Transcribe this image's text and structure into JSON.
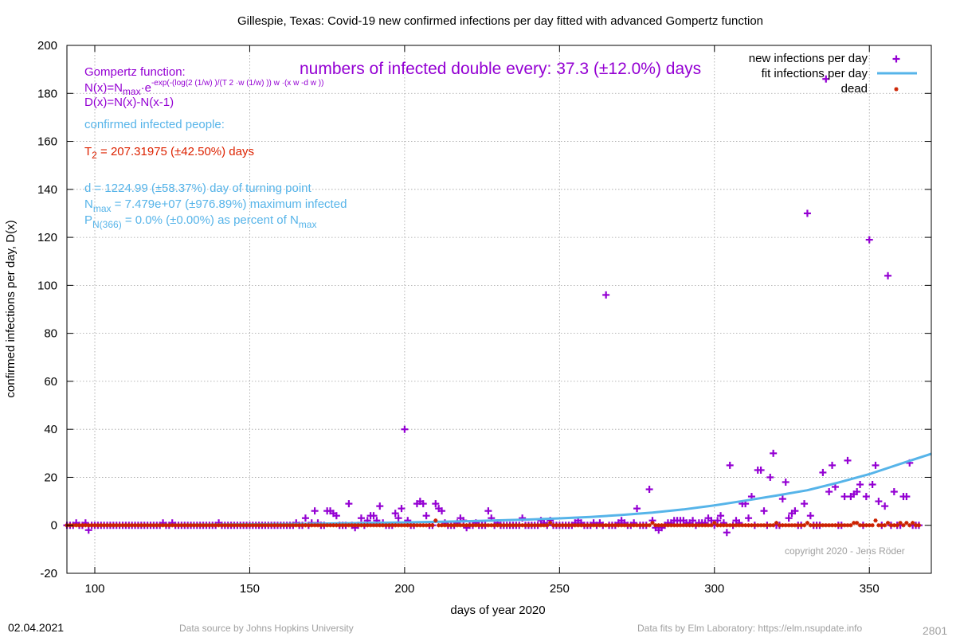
{
  "chart_data": {
    "type": "scatter",
    "title": "Gillespie,  Texas: Covid-19 new confirmed infections per day fitted with advanced Gompertz function",
    "xlabel": "days of year 2020",
    "ylabel": "confirmed infections per day, D(x)",
    "xlim": [
      91,
      370
    ],
    "ylim": [
      -20,
      200
    ],
    "xticks": [
      100,
      150,
      200,
      250,
      300,
      350
    ],
    "yticks": [
      -20,
      0,
      20,
      40,
      60,
      80,
      100,
      120,
      140,
      160,
      180,
      200
    ],
    "grid": true,
    "legend_position": "top-right",
    "series": [
      {
        "name": "new infections per day",
        "color": "#9400d3",
        "marker": "plus",
        "points": [
          [
            91,
            0
          ],
          [
            92,
            0
          ],
          [
            93,
            0
          ],
          [
            94,
            1
          ],
          [
            95,
            0
          ],
          [
            96,
            0
          ],
          [
            97,
            1
          ],
          [
            98,
            -2
          ],
          [
            99,
            0
          ],
          [
            100,
            0
          ],
          [
            101,
            0
          ],
          [
            102,
            0
          ],
          [
            103,
            0
          ],
          [
            104,
            0
          ],
          [
            105,
            0
          ],
          [
            106,
            0
          ],
          [
            107,
            0
          ],
          [
            108,
            0
          ],
          [
            109,
            0
          ],
          [
            110,
            0
          ],
          [
            111,
            0
          ],
          [
            112,
            0
          ],
          [
            113,
            0
          ],
          [
            114,
            0
          ],
          [
            115,
            0
          ],
          [
            116,
            0
          ],
          [
            117,
            0
          ],
          [
            118,
            0
          ],
          [
            119,
            0
          ],
          [
            120,
            0
          ],
          [
            121,
            0
          ],
          [
            122,
            1
          ],
          [
            123,
            0
          ],
          [
            124,
            0
          ],
          [
            125,
            1
          ],
          [
            126,
            0
          ],
          [
            127,
            0
          ],
          [
            128,
            0
          ],
          [
            129,
            0
          ],
          [
            130,
            0
          ],
          [
            131,
            0
          ],
          [
            132,
            0
          ],
          [
            133,
            0
          ],
          [
            134,
            0
          ],
          [
            135,
            0
          ],
          [
            136,
            0
          ],
          [
            137,
            0
          ],
          [
            138,
            0
          ],
          [
            139,
            0
          ],
          [
            140,
            1
          ],
          [
            141,
            0
          ],
          [
            142,
            0
          ],
          [
            143,
            0
          ],
          [
            144,
            0
          ],
          [
            145,
            0
          ],
          [
            146,
            0
          ],
          [
            147,
            0
          ],
          [
            148,
            0
          ],
          [
            149,
            0
          ],
          [
            150,
            0
          ],
          [
            151,
            0
          ],
          [
            152,
            0
          ],
          [
            153,
            0
          ],
          [
            154,
            0
          ],
          [
            155,
            0
          ],
          [
            156,
            0
          ],
          [
            157,
            0
          ],
          [
            158,
            0
          ],
          [
            159,
            0
          ],
          [
            160,
            0
          ],
          [
            161,
            0
          ],
          [
            162,
            0
          ],
          [
            163,
            0
          ],
          [
            164,
            0
          ],
          [
            165,
            1
          ],
          [
            166,
            0
          ],
          [
            167,
            0
          ],
          [
            168,
            3
          ],
          [
            169,
            0
          ],
          [
            170,
            1
          ],
          [
            171,
            6
          ],
          [
            172,
            1
          ],
          [
            173,
            0
          ],
          [
            174,
            0
          ],
          [
            175,
            6
          ],
          [
            176,
            6
          ],
          [
            177,
            5
          ],
          [
            178,
            4
          ],
          [
            179,
            0
          ],
          [
            180,
            0
          ],
          [
            181,
            0
          ],
          [
            182,
            9
          ],
          [
            183,
            0
          ],
          [
            184,
            -1
          ],
          [
            185,
            0
          ],
          [
            186,
            3
          ],
          [
            187,
            0
          ],
          [
            188,
            2
          ],
          [
            189,
            4
          ],
          [
            190,
            4
          ],
          [
            191,
            2
          ],
          [
            192,
            8
          ],
          [
            193,
            1
          ],
          [
            194,
            0
          ],
          [
            195,
            0
          ],
          [
            196,
            0
          ],
          [
            197,
            5
          ],
          [
            198,
            3
          ],
          [
            199,
            7
          ],
          [
            200,
            40
          ],
          [
            201,
            2
          ],
          [
            202,
            0
          ],
          [
            203,
            0
          ],
          [
            204,
            9
          ],
          [
            205,
            10
          ],
          [
            206,
            9
          ],
          [
            207,
            4
          ],
          [
            208,
            0
          ],
          [
            209,
            0
          ],
          [
            210,
            9
          ],
          [
            211,
            7
          ],
          [
            212,
            6
          ],
          [
            213,
            1
          ],
          [
            214,
            0
          ],
          [
            215,
            0
          ],
          [
            216,
            0
          ],
          [
            217,
            1
          ],
          [
            218,
            3
          ],
          [
            219,
            2
          ],
          [
            220,
            -1
          ],
          [
            221,
            0
          ],
          [
            222,
            0
          ],
          [
            223,
            1
          ],
          [
            224,
            0
          ],
          [
            225,
            0
          ],
          [
            226,
            0
          ],
          [
            227,
            6
          ],
          [
            228,
            3
          ],
          [
            229,
            0
          ],
          [
            230,
            1
          ],
          [
            231,
            0
          ],
          [
            232,
            0
          ],
          [
            233,
            0
          ],
          [
            234,
            0
          ],
          [
            235,
            0
          ],
          [
            236,
            0
          ],
          [
            237,
            0
          ],
          [
            238,
            3
          ],
          [
            239,
            0
          ],
          [
            240,
            0
          ],
          [
            241,
            0
          ],
          [
            242,
            0
          ],
          [
            243,
            0
          ],
          [
            244,
            2
          ],
          [
            245,
            1
          ],
          [
            246,
            0
          ],
          [
            247,
            2
          ],
          [
            248,
            0
          ],
          [
            249,
            0
          ],
          [
            250,
            0
          ],
          [
            251,
            0
          ],
          [
            252,
            0
          ],
          [
            253,
            0
          ],
          [
            254,
            0
          ],
          [
            255,
            1
          ],
          [
            256,
            2
          ],
          [
            257,
            1
          ],
          [
            258,
            0
          ],
          [
            259,
            0
          ],
          [
            260,
            0
          ],
          [
            261,
            1
          ],
          [
            262,
            0
          ],
          [
            263,
            1
          ],
          [
            264,
            0
          ],
          [
            265,
            96
          ],
          [
            266,
            0
          ],
          [
            267,
            0
          ],
          [
            268,
            0
          ],
          [
            269,
            1
          ],
          [
            270,
            2
          ],
          [
            271,
            1
          ],
          [
            272,
            0
          ],
          [
            273,
            0
          ],
          [
            274,
            1
          ],
          [
            275,
            7
          ],
          [
            276,
            0
          ],
          [
            277,
            0
          ],
          [
            278,
            0
          ],
          [
            279,
            15
          ],
          [
            280,
            2
          ],
          [
            281,
            -1
          ],
          [
            282,
            -2
          ],
          [
            283,
            -1
          ],
          [
            284,
            0
          ],
          [
            285,
            1
          ],
          [
            286,
            1
          ],
          [
            287,
            2
          ],
          [
            288,
            2
          ],
          [
            289,
            2
          ],
          [
            290,
            2
          ],
          [
            291,
            1
          ],
          [
            292,
            1
          ],
          [
            293,
            2
          ],
          [
            294,
            0
          ],
          [
            295,
            1
          ],
          [
            296,
            1
          ],
          [
            297,
            1
          ],
          [
            298,
            3
          ],
          [
            299,
            2
          ],
          [
            300,
            0
          ],
          [
            301,
            2
          ],
          [
            302,
            4
          ],
          [
            303,
            1
          ],
          [
            304,
            -3
          ],
          [
            305,
            25
          ],
          [
            306,
            0
          ],
          [
            307,
            2
          ],
          [
            308,
            1
          ],
          [
            309,
            9
          ],
          [
            310,
            9
          ],
          [
            311,
            3
          ],
          [
            312,
            12
          ],
          [
            313,
            0
          ],
          [
            314,
            23
          ],
          [
            315,
            23
          ],
          [
            316,
            6
          ],
          [
            317,
            0
          ],
          [
            318,
            20
          ],
          [
            319,
            30
          ],
          [
            320,
            0
          ],
          [
            321,
            0
          ],
          [
            322,
            11
          ],
          [
            323,
            18
          ],
          [
            324,
            3
          ],
          [
            325,
            5
          ],
          [
            326,
            6
          ],
          [
            327,
            0
          ],
          [
            328,
            0
          ],
          [
            329,
            9
          ],
          [
            330,
            130
          ],
          [
            331,
            4
          ],
          [
            332,
            0
          ],
          [
            333,
            0
          ],
          [
            334,
            0
          ],
          [
            335,
            22
          ],
          [
            336,
            186
          ],
          [
            337,
            14
          ],
          [
            338,
            25
          ],
          [
            339,
            16
          ],
          [
            340,
            0
          ],
          [
            341,
            0
          ],
          [
            342,
            12
          ],
          [
            343,
            27
          ],
          [
            344,
            12
          ],
          [
            345,
            13
          ],
          [
            346,
            14
          ],
          [
            347,
            17
          ],
          [
            348,
            0
          ],
          [
            349,
            12
          ],
          [
            350,
            119
          ],
          [
            351,
            17
          ],
          [
            352,
            25
          ],
          [
            353,
            10
          ],
          [
            354,
            0
          ],
          [
            355,
            8
          ],
          [
            356,
            104
          ],
          [
            357,
            0
          ],
          [
            358,
            14
          ],
          [
            359,
            0
          ],
          [
            360,
            0
          ],
          [
            361,
            12
          ],
          [
            362,
            12
          ],
          [
            363,
            26
          ],
          [
            364,
            0
          ],
          [
            365,
            0
          ],
          [
            366,
            0
          ]
        ]
      },
      {
        "name": "fit infections per day",
        "color": "#56b4e9",
        "line": true,
        "points": [
          [
            91,
            0.0
          ],
          [
            100,
            0.05
          ],
          [
            120,
            0.15
          ],
          [
            140,
            0.3
          ],
          [
            160,
            0.5
          ],
          [
            180,
            0.8
          ],
          [
            200,
            1.2
          ],
          [
            220,
            1.7
          ],
          [
            240,
            2.4
          ],
          [
            250,
            2.9
          ],
          [
            260,
            3.5
          ],
          [
            270,
            4.3
          ],
          [
            280,
            5.3
          ],
          [
            290,
            6.6
          ],
          [
            300,
            8.3
          ],
          [
            310,
            10.3
          ],
          [
            320,
            12.4
          ],
          [
            330,
            14.6
          ],
          [
            340,
            17.8
          ],
          [
            350,
            21.3
          ],
          [
            360,
            25.6
          ],
          [
            370,
            29.8
          ]
        ]
      },
      {
        "name": "dead",
        "color": "#cc2200",
        "marker": "star",
        "points": [
          [
            210,
            2
          ],
          [
            247,
            1
          ],
          [
            280,
            1
          ],
          [
            300,
            1
          ],
          [
            320,
            1
          ],
          [
            330,
            1
          ],
          [
            345,
            1
          ],
          [
            346,
            1
          ],
          [
            352,
            2
          ],
          [
            356,
            1
          ],
          [
            360,
            1
          ],
          [
            362,
            1
          ],
          [
            364,
            1
          ]
        ]
      }
    ]
  },
  "text_overlay": {
    "gompertz_title": "Gompertz function:",
    "formula_n_prefix": "N(x)=N",
    "formula_n_sub": "max",
    "formula_n_mid": "·e",
    "formula_exponent": "-exp(-(log(2 (1/w) )/(T 2 ·w (1/w) )) w ·(x w -d w ))",
    "formula_d": "D(x)=N(x)-N(x-1)",
    "doubling_banner": "numbers of infected double every: 37.3 (±12.0%) days",
    "confirmed_label": "confirmed infected people:",
    "t2_prefix": "T",
    "t2_sub": "2",
    "t2_value": " = 207.31975 (±42.50%) days",
    "d_value": "d = 1224.99 (±58.37%) day of turning point",
    "nmax_prefix": "N",
    "nmax_sub": "max",
    "nmax_value": " = 7.479e+07 (±976.89%) maximum infected",
    "p_prefix": "P",
    "p_sub": "N(366)",
    "p_value": " = 0.0% (±0.00%) as percent of N",
    "p_sub2": "max",
    "copyright": "copyright 2020 - Jens Röder"
  },
  "footer": {
    "date": "02.04.2021",
    "data_source": "Data source by Johns Hopkins University",
    "data_fits": "Data fits by Elm Laboratory: https://elm.nsupdate.info",
    "image_id": "2801"
  },
  "colors": {
    "purple": "#9400d3",
    "fit_blue": "#56b4e9",
    "dead_red": "#cc2200",
    "grid": "#a0a0a0"
  }
}
